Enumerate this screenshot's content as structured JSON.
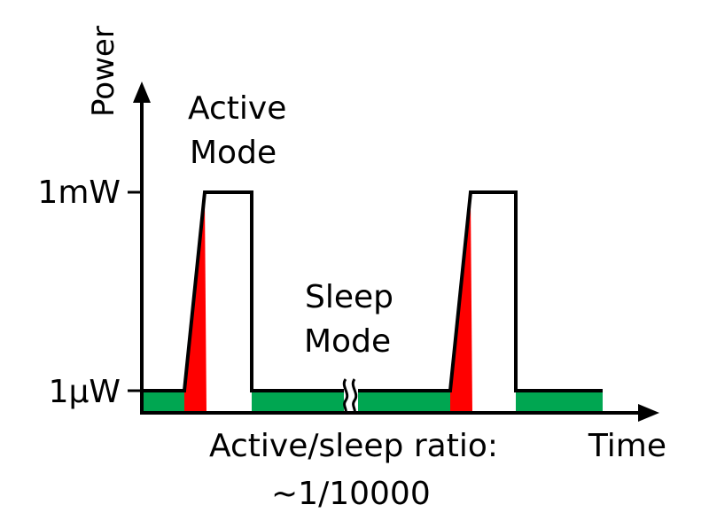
{
  "axes": {
    "y_label": "Power",
    "x_label": "Time",
    "y_ticks": [
      "1mW",
      "1µW"
    ]
  },
  "annotations": {
    "active_line1": "Active",
    "active_line2": "Mode",
    "sleep_line1": "Sleep",
    "sleep_line2": "Mode",
    "ratio_line1": "Active/sleep ratio:",
    "ratio_line2": "~1/10000"
  },
  "colors": {
    "sleep": "#00a651",
    "transition": "#ff0000",
    "axis": "#000000"
  }
}
